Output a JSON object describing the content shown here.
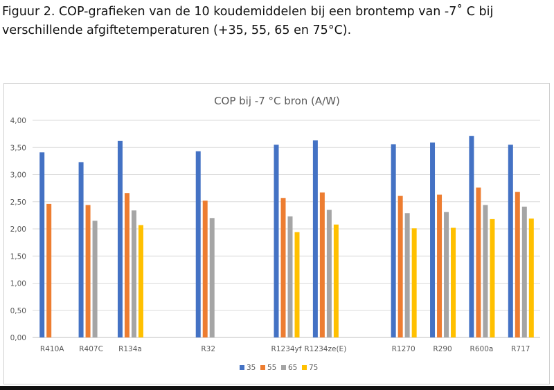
{
  "caption": "Figuur 2. COP-grafieken van de 10 koudemiddelen bij een brontemp van -7˚ C bij verschillende afgiftetemperaturen (+35, 55, 65 en 75°C).",
  "chart_data": {
    "type": "bar",
    "title": "COP bij -7 °C bron (A/W)",
    "xlabel": "",
    "ylabel": "",
    "ylim": [
      0,
      4
    ],
    "yticks": [
      "0,00",
      "0,50",
      "1,00",
      "1,50",
      "2,00",
      "2,50",
      "3,00",
      "3,50",
      "4,00"
    ],
    "grid": true,
    "legend_position": "bottom",
    "categories": [
      "R410A",
      "R407C",
      "R134a",
      "",
      "R32",
      "",
      "R1234yf",
      "R1234ze(E)",
      "",
      "R1270",
      "R290",
      "R600a",
      "R717"
    ],
    "series": [
      {
        "name": "35",
        "color": "#4472c4",
        "values": [
          3.41,
          3.23,
          3.62,
          null,
          3.43,
          null,
          3.55,
          3.63,
          null,
          3.56,
          3.59,
          3.71,
          3.55
        ]
      },
      {
        "name": "55",
        "color": "#ed7d31",
        "values": [
          2.46,
          2.44,
          2.66,
          null,
          2.52,
          null,
          2.57,
          2.67,
          null,
          2.61,
          2.63,
          2.76,
          2.68
        ]
      },
      {
        "name": "65",
        "color": "#a5a5a5",
        "values": [
          null,
          2.15,
          2.34,
          null,
          2.2,
          null,
          2.23,
          2.35,
          null,
          2.29,
          2.31,
          2.44,
          2.41
        ]
      },
      {
        "name": "75",
        "color": "#ffc000",
        "values": [
          null,
          null,
          2.07,
          null,
          null,
          null,
          1.94,
          2.08,
          null,
          2.01,
          2.02,
          2.18,
          2.19
        ]
      }
    ]
  }
}
